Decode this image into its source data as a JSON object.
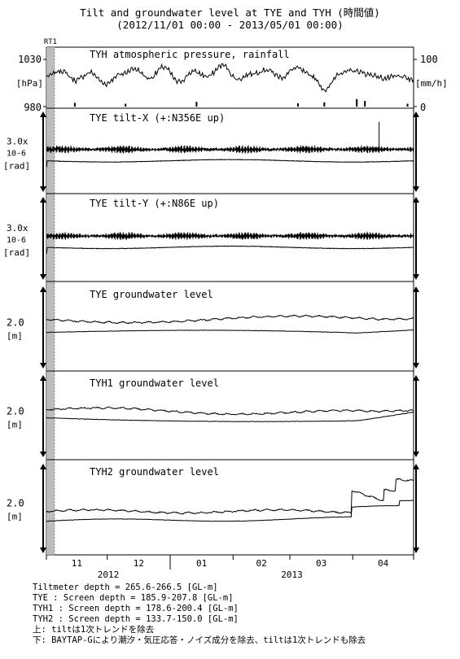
{
  "title": "Tilt and groundwater level at TYE and TYH (時間値)",
  "subtitle": "(2012/11/01 00:00 - 2013/05/01 00:00)",
  "notes": [
    "Tiltmeter depth = 265.6-266.5 [GL-m]",
    "TYE : Screen depth = 185.9-207.8 [GL-m]",
    "TYH1 : Screen depth = 178.6-200.4 [GL-m]",
    "TYH2 : Screen depth = 133.7-150.0 [GL-m]",
    "上: tiltは1次トレンドを除去",
    "下: BAYTAP-Gにより潮汐・気圧応答・ノイズ成分を除去、tiltは1次トレンドも除去"
  ],
  "chart_data": {
    "type": "line",
    "x_range": [
      "2012/11/01 00:00",
      "2013/05/01 00:00"
    ],
    "month_labels": [
      "11",
      "12",
      "01",
      "02",
      "03",
      "04"
    ],
    "year_labels": [
      "2012",
      "2013"
    ],
    "marker": {
      "label": "RT1",
      "start": "2012/11/01",
      "end": "2012/11/05"
    },
    "panels": [
      {
        "title": "TYH atmospheric pressure, rainfall",
        "left_ticks": [
          "1030",
          "980"
        ],
        "left_unit": "[hPa]",
        "right_ticks": [
          "100",
          "0"
        ],
        "right_unit": "[mm/h]",
        "pressure_hpa_weekly": [
          1012,
          1018,
          1008,
          1016,
          1004,
          1014,
          1020,
          1010,
          1022,
          1006,
          1017,
          1012,
          1024,
          1009,
          1015,
          1019,
          1011,
          1021,
          1013,
          998,
          1016,
          1018,
          1014,
          1010,
          1012,
          1008
        ],
        "rain_events": [
          {
            "date": "2012/11/15",
            "mm": 8
          },
          {
            "date": "2012/12/10",
            "mm": 6
          },
          {
            "date": "2013/01/14",
            "mm": 10
          },
          {
            "date": "2013/03/05",
            "mm": 7
          },
          {
            "date": "2013/03/18",
            "mm": 9
          },
          {
            "date": "2013/04/03",
            "mm": 16
          },
          {
            "date": "2013/04/07",
            "mm": 12
          },
          {
            "date": "2013/04/28",
            "mm": 6
          }
        ]
      },
      {
        "title": "TYE tilt-X (+:N356E up)",
        "scale_label": "3.0x",
        "scale_exp": "10-6",
        "unit": "[rad]",
        "spike_date": "2013/04/14"
      },
      {
        "title": "TYE tilt-Y (+:N86E up)",
        "scale_label": "3.0x",
        "scale_exp": "10-6",
        "unit": "[rad]"
      },
      {
        "title": "TYE groundwater level",
        "scale_label": "2.0",
        "unit": "[m]"
      },
      {
        "title": "TYH1 groundwater level",
        "scale_label": "2.0",
        "unit": "[m]"
      },
      {
        "title": "TYH2 groundwater level",
        "scale_label": "2.0",
        "unit": "[m]",
        "step_date": "2013/03/28"
      }
    ]
  }
}
